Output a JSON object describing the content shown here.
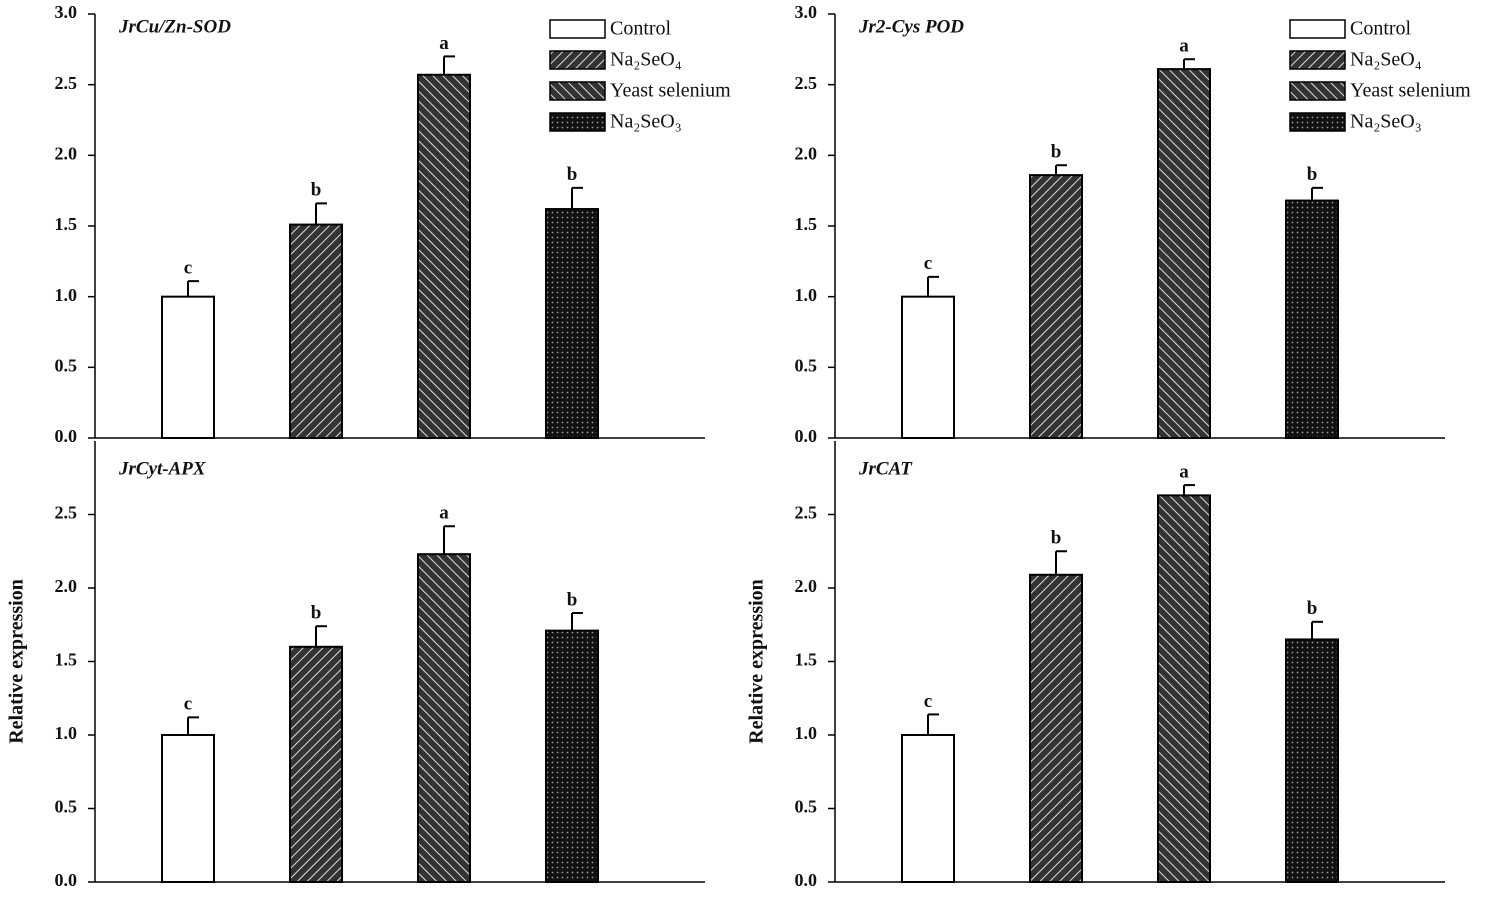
{
  "chart_data": [
    {
      "type": "bar",
      "title": "JrCu/Zn-SOD",
      "legend": "upper right",
      "ylim": [
        0,
        3
      ],
      "yticks": [
        {
          "value": 0,
          "label": "0.0"
        },
        {
          "value": 0.5,
          "label": "0.5"
        },
        {
          "value": 1,
          "label": "1.0"
        },
        {
          "value": 1.5,
          "label": "1.5"
        },
        {
          "value": 2,
          "label": "2.0"
        },
        {
          "value": 2.5,
          "label": "2.5"
        },
        {
          "value": 3,
          "label": "3.0"
        }
      ],
      "series": [
        {
          "name": "Control",
          "pattern": "white",
          "values": [
            1.0
          ],
          "errors": [
            0.11
          ],
          "letters": [
            "c"
          ]
        },
        {
          "name": "Na₂SeO₄",
          "pattern": "forward",
          "values": [
            1.51
          ],
          "errors": [
            0.15
          ],
          "letters": [
            "b"
          ]
        },
        {
          "name": "Yeast selenium",
          "pattern": "back",
          "values": [
            2.57
          ],
          "errors": [
            0.13
          ],
          "letters": [
            "a"
          ]
        },
        {
          "name": "Na₂SeO₃",
          "pattern": "dots",
          "values": [
            1.62
          ],
          "errors": [
            0.15
          ],
          "letters": [
            "b"
          ]
        }
      ]
    },
    {
      "type": "bar",
      "title": "Jr2-Cys POD",
      "legend": "upper right",
      "ylim": [
        0,
        3
      ],
      "yticks": [
        {
          "value": 0,
          "label": "0.0"
        },
        {
          "value": 0.5,
          "label": "0.5"
        },
        {
          "value": 1,
          "label": "1.0"
        },
        {
          "value": 1.5,
          "label": "1.5"
        },
        {
          "value": 2,
          "label": "2.0"
        },
        {
          "value": 2.5,
          "label": "2.5"
        },
        {
          "value": 3,
          "label": "3.0"
        }
      ],
      "series": [
        {
          "name": "Control",
          "pattern": "white",
          "values": [
            1.0
          ],
          "errors": [
            0.14
          ],
          "letters": [
            "c"
          ]
        },
        {
          "name": "Na₂SeO₄",
          "pattern": "forward",
          "values": [
            1.86
          ],
          "errors": [
            0.07
          ],
          "letters": [
            "b"
          ]
        },
        {
          "name": "Yeast selenium",
          "pattern": "back",
          "values": [
            2.61
          ],
          "errors": [
            0.07
          ],
          "letters": [
            "a"
          ]
        },
        {
          "name": "Na₂SeO₃",
          "pattern": "dots",
          "values": [
            1.68
          ],
          "errors": [
            0.09
          ],
          "letters": [
            "b"
          ]
        }
      ]
    },
    {
      "type": "bar",
      "title": "JrCyt-APX",
      "y_label": "Relative expression",
      "ylim": [
        0,
        3
      ],
      "yticks": [
        {
          "value": 0,
          "label": "0.0"
        },
        {
          "value": 0.5,
          "label": "0.5"
        },
        {
          "value": 1,
          "label": "1.0"
        },
        {
          "value": 1.5,
          "label": "1.5"
        },
        {
          "value": 2,
          "label": "2.0"
        },
        {
          "value": 2.5,
          "label": "2.5"
        }
      ],
      "series": [
        {
          "pattern": "white",
          "values": [
            1.0
          ],
          "errors": [
            0.12
          ],
          "letters": [
            "c"
          ]
        },
        {
          "pattern": "forward",
          "values": [
            1.6
          ],
          "errors": [
            0.14
          ],
          "letters": [
            "b"
          ]
        },
        {
          "pattern": "back",
          "values": [
            2.23
          ],
          "errors": [
            0.19
          ],
          "letters": [
            "a"
          ]
        },
        {
          "pattern": "dots",
          "values": [
            1.71
          ],
          "errors": [
            0.12
          ],
          "letters": [
            "b"
          ]
        }
      ]
    },
    {
      "type": "bar",
      "title": "JrCAT",
      "y_label": "Relative expression",
      "ylim": [
        0,
        3
      ],
      "yticks": [
        {
          "value": 0,
          "label": "0.0"
        },
        {
          "value": 0.5,
          "label": "0.5"
        },
        {
          "value": 1,
          "label": "1.0"
        },
        {
          "value": 1.5,
          "label": "1.5"
        },
        {
          "value": 2,
          "label": "2.0"
        },
        {
          "value": 2.5,
          "label": "2.5"
        }
      ],
      "series": [
        {
          "pattern": "white",
          "values": [
            1.0
          ],
          "errors": [
            0.14
          ],
          "letters": [
            "c"
          ]
        },
        {
          "pattern": "forward",
          "values": [
            2.09
          ],
          "errors": [
            0.16
          ],
          "letters": [
            "b"
          ]
        },
        {
          "pattern": "back",
          "values": [
            2.63
          ],
          "errors": [
            0.07
          ],
          "letters": [
            "a"
          ]
        },
        {
          "pattern": "dots",
          "values": [
            1.65
          ],
          "errors": [
            0.12
          ],
          "letters": [
            "b"
          ]
        }
      ]
    }
  ]
}
